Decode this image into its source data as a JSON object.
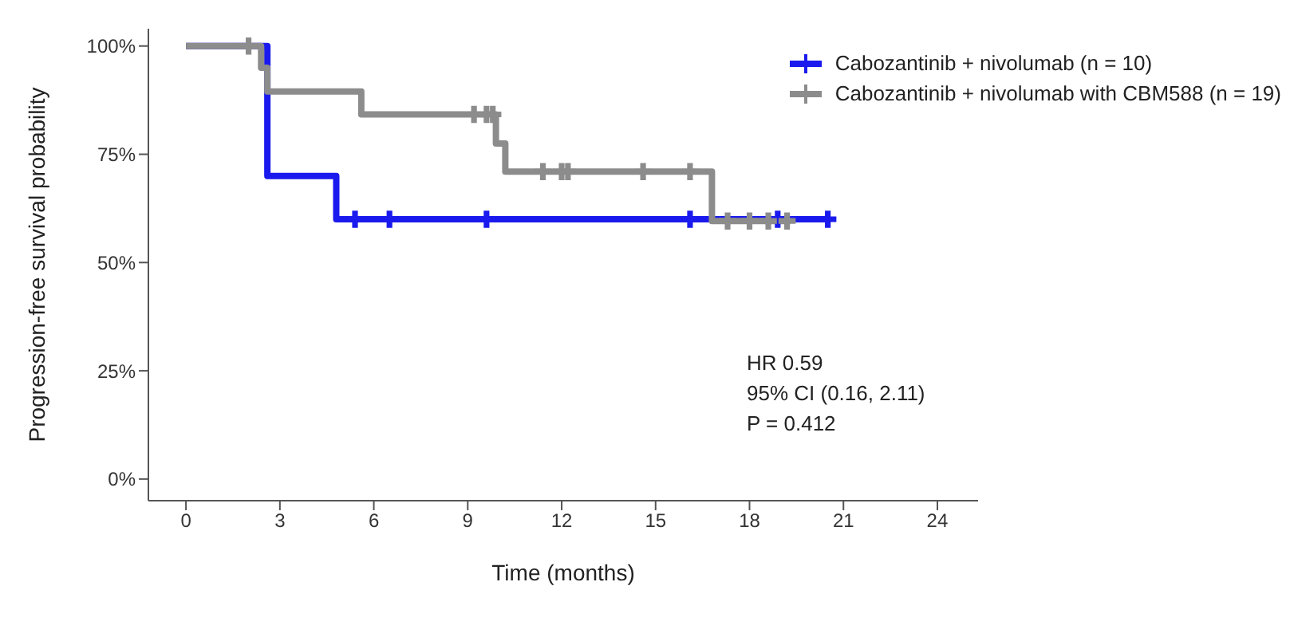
{
  "chart_data": {
    "type": "step",
    "xlabel": "Time (months)",
    "ylabel": "Progression-free survival probability",
    "xlim": [
      -1.2,
      25.3
    ],
    "xticks": [
      0,
      3,
      6,
      9,
      12,
      15,
      18,
      21,
      24
    ],
    "ylim": [
      -5,
      104
    ],
    "yticks": [
      {
        "value": 0,
        "label": "0%"
      },
      {
        "value": 25,
        "label": "25%"
      },
      {
        "value": 50,
        "label": "50%"
      },
      {
        "value": 75,
        "label": "75%"
      },
      {
        "value": 100,
        "label": "100%"
      }
    ],
    "grid": false,
    "legend": "top right",
    "line_style": "solid",
    "series": [
      {
        "name": "Cabozantinib + nivolumab (n = 10)",
        "color": "#1a1aee",
        "x": [
          0,
          2.6,
          4.8,
          20.5
        ],
        "values": [
          100,
          70,
          60,
          60
        ]
      },
      {
        "name": "Cabozantinib + nivolumab with CBM588 (n = 19)",
        "color": "#8c8c8c",
        "x": [
          0,
          2.4,
          2.6,
          5.6,
          9.9,
          10.2,
          16.8,
          19.3
        ],
        "values": [
          100,
          95,
          89.5,
          84.2,
          77.5,
          71,
          59.6,
          59.6
        ]
      },
      {
        "color": "#1a1aee",
        "type": "scatter",
        "marker": "cross",
        "x": [
          5.4,
          6.5,
          9.6,
          16.1,
          18.9,
          20.5
        ],
        "values": [
          60,
          60,
          60,
          60,
          60,
          60
        ]
      },
      {
        "color": "#8c8c8c",
        "type": "scatter",
        "marker": "cross",
        "x": [
          2.0,
          9.2,
          9.6,
          9.8,
          11.4,
          12.0,
          12.2,
          14.6,
          16.1,
          17.3,
          18.0,
          18.6,
          19.2
        ],
        "values": [
          100,
          84.2,
          84.2,
          84.2,
          71,
          71,
          71,
          71,
          71,
          59.6,
          59.6,
          59.6,
          59.6
        ]
      }
    ],
    "annotations": [
      "HR 0.59",
      "95% CI (0.16, 2.11)",
      "P = 0.412"
    ]
  }
}
